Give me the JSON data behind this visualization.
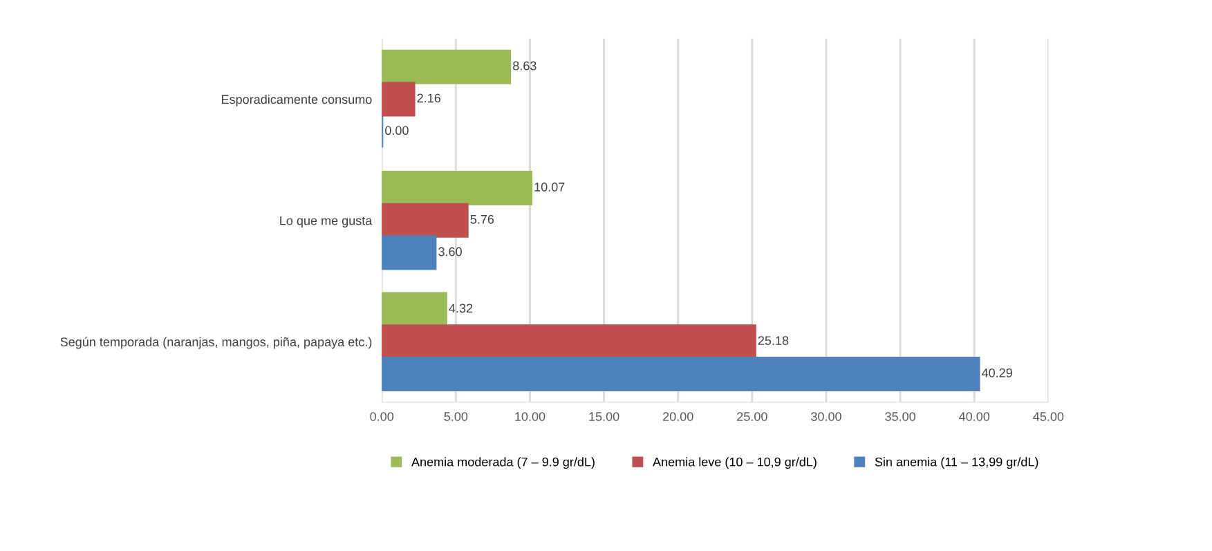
{
  "chart_data": {
    "type": "bar",
    "orientation": "horizontal",
    "categories": [
      "Esporadicamente consumo",
      "Lo que me gusta",
      "Según temporada (naranjas, mangos, piña, papaya etc.)"
    ],
    "series": [
      {
        "name": "Anemia moderada (7 – 9.9 gr/dL)",
        "color": "#9bbb59",
        "values": [
          8.63,
          10.07,
          4.32
        ],
        "value_labels": [
          "8.63",
          "10.07",
          "4.32"
        ]
      },
      {
        "name": "Anemia leve (10 – 10,9 gr/dL)",
        "color": "#c0504d",
        "values": [
          2.16,
          5.76,
          25.18
        ],
        "value_labels": [
          "2.16",
          "5.76",
          "25.18"
        ]
      },
      {
        "name": "Sin anemia (11 – 13,99 gr/dL)",
        "color": "#4f81bd",
        "values": [
          0.0,
          3.6,
          40.29
        ],
        "value_labels": [
          "0.00",
          "3.60",
          "40.29"
        ]
      }
    ],
    "xlim": [
      0,
      45
    ],
    "xticks": [
      {
        "value": 0,
        "label": "0.00"
      },
      {
        "value": 5,
        "label": "5.00"
      },
      {
        "value": 10,
        "label": "10.00"
      },
      {
        "value": 15,
        "label": "15.00"
      },
      {
        "value": 20,
        "label": "20.00"
      },
      {
        "value": 25,
        "label": "25.00"
      },
      {
        "value": 30,
        "label": "30.00"
      },
      {
        "value": 35,
        "label": "35.00"
      },
      {
        "value": 40,
        "label": "40.00"
      },
      {
        "value": 45,
        "label": "45.00"
      }
    ],
    "grid": "x",
    "legend": "bottom"
  }
}
